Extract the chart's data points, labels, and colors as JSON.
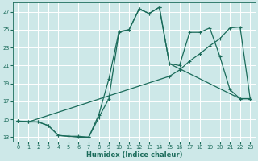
{
  "bg_color": "#cde8e8",
  "grid_color": "#b0d0d0",
  "line_color": "#1a6b5a",
  "xlabel": "Humidex (Indice chaleur)",
  "xlim": [
    -0.5,
    23.5
  ],
  "ylim": [
    12.5,
    28.0
  ],
  "xticks": [
    0,
    1,
    2,
    3,
    4,
    5,
    6,
    7,
    8,
    9,
    10,
    11,
    12,
    13,
    14,
    15,
    16,
    17,
    18,
    19,
    20,
    21,
    22,
    23
  ],
  "yticks": [
    13,
    15,
    17,
    19,
    21,
    23,
    25,
    27
  ],
  "series": [
    {
      "x": [
        0,
        2,
        3,
        4,
        5,
        6,
        7,
        8,
        9,
        10,
        11,
        12,
        13,
        14,
        15,
        16,
        17,
        18,
        19,
        20,
        21,
        22,
        23
      ],
      "y": [
        14.8,
        14.7,
        14.3,
        13.2,
        13.1,
        13.0,
        13.0,
        15.5,
        19.5,
        24.8,
        25.0,
        27.3,
        26.8,
        27.5,
        21.2,
        21.0,
        24.7,
        24.7,
        25.2,
        22.0,
        18.3,
        17.3,
        17.3
      ]
    },
    {
      "x": [
        0,
        1,
        2,
        3,
        4,
        5,
        6,
        7,
        8,
        9,
        10,
        11,
        12,
        13,
        14,
        15,
        22,
        23
      ],
      "y": [
        14.8,
        14.7,
        14.7,
        14.3,
        13.2,
        13.1,
        13.1,
        13.0,
        15.2,
        17.3,
        24.7,
        25.0,
        27.3,
        26.8,
        27.5,
        21.2,
        17.3,
        17.3
      ]
    },
    {
      "x": [
        0,
        1,
        15,
        16,
        17,
        18,
        19,
        20,
        21,
        22,
        23
      ],
      "y": [
        14.8,
        14.7,
        19.8,
        20.5,
        21.5,
        22.3,
        23.2,
        24.0,
        25.2,
        25.3,
        17.3
      ]
    }
  ]
}
